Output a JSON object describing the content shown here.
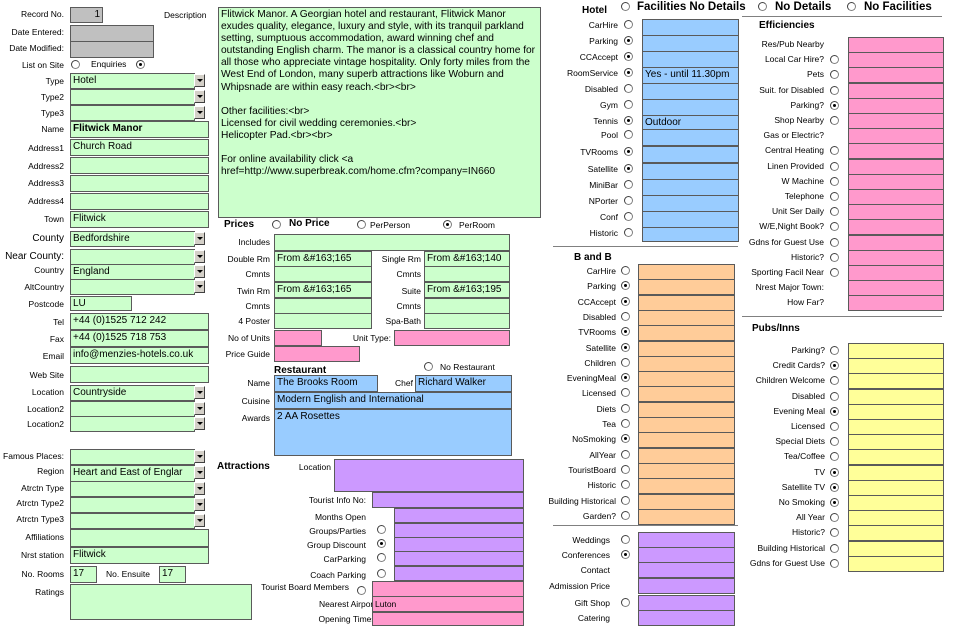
{
  "left": {
    "record_no_label": "Record No.",
    "record_no": "1",
    "date_entered_label": "Date Entered:",
    "date_modified_label": "Date Modified:",
    "list_on_site_label": "List on Site",
    "enquiries_label": "Enquiries",
    "type_label": "Type",
    "type": "Hotel",
    "type2_label": "Type2",
    "type3_label": "Type3",
    "name_label": "Name",
    "name": "Flitwick Manor",
    "address1_label": "Address1",
    "address1": "Church Road",
    "address2_label": "Address2",
    "address3_label": "Address3",
    "address4_label": "Address4",
    "town_label": "Town",
    "town": "Flitwick",
    "county_label": "County",
    "county": "Bedfordshire",
    "near_county_label": "Near County:",
    "country_label": "Country",
    "country": "England",
    "alt_country_label": "AltCountry",
    "postcode_label": "Postcode",
    "postcode": "LU",
    "tel_label": "Tel",
    "tel": "+44 (0)1525 712 242",
    "fax_label": "Fax",
    "fax": "+44 (0)1525 718 753",
    "email_label": "Email",
    "email": "info@menzies-hotels.co.uk",
    "website_label": "Web Site",
    "location_label": "Location",
    "location": "Countryside",
    "location2a_label": "Location2",
    "location2b_label": "Location2",
    "famous_places_label": "Famous Places:",
    "region_label": "Region",
    "region": "Heart and East of Englar",
    "atrctn_type_label": "Atrctn Type",
    "atrctn_type2_label": "Atrctn Type2",
    "atrctn_type3_label": "Atrctn Type3",
    "affiliations_label": "Affiliations",
    "nrst_station_label": "Nrst station",
    "nrst_station": "Flitwick",
    "no_rooms_label": "No. Rooms",
    "no_rooms": "17",
    "no_ensuite_label": "No. Ensuite",
    "no_ensuite": "17",
    "ratings_label": "Ratings"
  },
  "description": {
    "label": "Description",
    "text": "Flitwick Manor. A Georgian hotel and restaurant, Flitwick Manor exudes quality, elegance, luxury and style, with its tranquil parkland setting, sumptuous accommodation, award winning chef and outstanding English charm. The manor is a classical country home for all those who appreciate vintage hospitality. Only forty miles from the West End of London, many superb attractions like Woburn and Whipsnade are within easy reach.<br><br>\n\nOther facilities:<br>\nLicensed for civil wedding ceremonies.<br>\nHelicopter Pad.<br><br>\n\nFor online availability click <a href=http://www.superbreak.com/home.cfm?company=IN660"
  },
  "prices": {
    "title": "Prices",
    "no_price": "No Price",
    "per_person": "PerPerson",
    "per_room": "PerRoom",
    "includes_label": "Includes",
    "double_rm_label": "Double Rm",
    "double_rm": "From &#163;165",
    "single_rm_label": "Single Rm",
    "single_rm": "From &#163;140",
    "cmnts1_label": "Cmnts",
    "cmnts2_label": "Cmnts",
    "twin_rm_label": "Twin Rm",
    "twin_rm": "From &#163;165",
    "suite_label": "Suite",
    "suite": "From &#163;195",
    "cmnts3_label": "Cmnts",
    "cmnts4_label": "Cmnts",
    "four_poster_label": "4 Poster",
    "spa_bath_label": "Spa-Bath",
    "no_units_label": "No of Units",
    "unit_type_label": "Unit Type:",
    "price_guide_label": "Price Guide"
  },
  "restaurant": {
    "title": "Restaurant",
    "no_restaurant": "No Restaurant",
    "name_label": "Name",
    "name": "The Brooks Room",
    "chef_label": "Chef",
    "chef": "Richard Walker",
    "cuisine_label": "Cuisine",
    "cuisine": "Modern English and International",
    "awards_label": "Awards",
    "awards": "2 AA Rosettes"
  },
  "attractions": {
    "title": "Attractions",
    "location_label": "Location",
    "tourist_info_label": "Tourist Info No:",
    "months_open_label": "Months Open",
    "groups_label": "Groups/Parties",
    "group_discount_label": "Group Discount",
    "car_parking_label": "CarParking",
    "coach_parking_label": "Coach Parking",
    "tourist_board_label": "Tourist Board Members",
    "nearest_airport_label": "Nearest Airport:",
    "nearest_airport": "Luton",
    "opening_times_label": "Opening Times:"
  },
  "hotel": {
    "title": "Hotel",
    "facilities_no_details": "Facilities No Details",
    "no_details": "No Details",
    "no_facilities": "No Facilities",
    "rows": [
      {
        "label": "CarHire",
        "on": false,
        "value": ""
      },
      {
        "label": "Parking",
        "on": true,
        "value": ""
      },
      {
        "label": "CCAccept",
        "on": true,
        "value": ""
      },
      {
        "label": "RoomService",
        "on": true,
        "value": "Yes - until 11.30pm"
      },
      {
        "label": "Disabled",
        "on": false,
        "value": ""
      },
      {
        "label": "Gym",
        "on": false,
        "value": ""
      },
      {
        "label": "Tennis",
        "on": true,
        "value": "Outdoor"
      },
      {
        "label": "Pool",
        "on": false,
        "value": ""
      },
      {
        "label": "TVRooms",
        "on": true,
        "value": ""
      },
      {
        "label": "Satellite",
        "on": true,
        "value": ""
      },
      {
        "label": "MiniBar",
        "on": false,
        "value": ""
      },
      {
        "label": "NPorter",
        "on": false,
        "value": ""
      },
      {
        "label": "Conf",
        "on": false,
        "value": ""
      },
      {
        "label": "Historic",
        "on": false,
        "value": ""
      }
    ]
  },
  "bandb": {
    "title": "B and B",
    "rows": [
      {
        "label": "CarHire",
        "on": false
      },
      {
        "label": "Parking",
        "on": true
      },
      {
        "label": "CCAccept",
        "on": true
      },
      {
        "label": "Disabled",
        "on": false
      },
      {
        "label": "TVRooms",
        "on": true
      },
      {
        "label": "Satellite",
        "on": true
      },
      {
        "label": "Children",
        "on": false
      },
      {
        "label": "EveningMeal",
        "on": true
      },
      {
        "label": "Licensed",
        "on": false
      },
      {
        "label": "Diets",
        "on": false
      },
      {
        "label": "Tea",
        "on": false
      },
      {
        "label": "NoSmoking",
        "on": true
      },
      {
        "label": "AllYear",
        "on": false
      },
      {
        "label": "TouristBoard",
        "on": false
      },
      {
        "label": "Historic",
        "on": false
      },
      {
        "label": "Building Historical",
        "on": false
      },
      {
        "label": "Garden?",
        "on": false
      }
    ]
  },
  "weddings": {
    "rows": [
      {
        "label": "Weddings",
        "radio": true,
        "on": false
      },
      {
        "label": "Conferences",
        "radio": true,
        "on": true
      },
      {
        "label": "Contact",
        "radio": false,
        "on": false
      },
      {
        "label": "Admission Price",
        "radio": false,
        "on": false
      },
      {
        "label": "Gift Shop",
        "radio": true,
        "on": false
      },
      {
        "label": "Catering",
        "radio": false,
        "on": false
      }
    ]
  },
  "efficiencies": {
    "title": "Efficiencies",
    "rows": [
      {
        "label": "Res/Pub Nearby",
        "radio": false,
        "on": false
      },
      {
        "label": "Local Car Hire?",
        "radio": true,
        "on": false
      },
      {
        "label": "Pets",
        "radio": true,
        "on": false
      },
      {
        "label": "Suit. for Disabled",
        "radio": true,
        "on": false
      },
      {
        "label": "Parking?",
        "radio": true,
        "on": true
      },
      {
        "label": "Shop Nearby",
        "radio": true,
        "on": false
      },
      {
        "label": "Gas or Electric?",
        "radio": false,
        "on": false
      },
      {
        "label": "Central Heating",
        "radio": true,
        "on": false
      },
      {
        "label": "Linen Provided",
        "radio": true,
        "on": false
      },
      {
        "label": "W Machine",
        "radio": true,
        "on": false
      },
      {
        "label": "Telephone",
        "radio": true,
        "on": false
      },
      {
        "label": "Unit Ser Daily",
        "radio": true,
        "on": false
      },
      {
        "label": "W/E,Night Book?",
        "radio": true,
        "on": false
      },
      {
        "label": "Gdns for Guest Use",
        "radio": true,
        "on": false
      },
      {
        "label": "Historic?",
        "radio": true,
        "on": false
      },
      {
        "label": "Sporting Facil Near",
        "radio": true,
        "on": false
      },
      {
        "label": "Nrest Major Town:",
        "radio": false,
        "on": false
      },
      {
        "label": "How Far?",
        "radio": false,
        "on": false
      }
    ]
  },
  "pubs": {
    "title": "Pubs/Inns",
    "rows": [
      {
        "label": "Parking?",
        "on": false
      },
      {
        "label": "Credit Cards?",
        "on": true
      },
      {
        "label": "Children Welcome",
        "on": false
      },
      {
        "label": "Disabled",
        "on": false
      },
      {
        "label": "Evening Meal",
        "on": true
      },
      {
        "label": "Licensed",
        "on": false
      },
      {
        "label": "Special Diets",
        "on": false
      },
      {
        "label": "Tea/Coffee",
        "on": false
      },
      {
        "label": "TV",
        "on": true
      },
      {
        "label": "Satellite TV",
        "on": true
      },
      {
        "label": "No Smoking",
        "on": true
      },
      {
        "label": "All Year",
        "on": false
      },
      {
        "label": "Historic?",
        "on": false
      },
      {
        "label": "Building Historical",
        "on": false
      },
      {
        "label": "Gdns for Guest Use",
        "on": false
      }
    ]
  },
  "colors": {
    "green": "#ccffcc",
    "pink": "#ff99cc",
    "blue": "#99ccff",
    "orange": "#ffcc99",
    "yellow": "#ffff99",
    "purple": "#cc99ff",
    "grey": "#c0c0c0"
  }
}
